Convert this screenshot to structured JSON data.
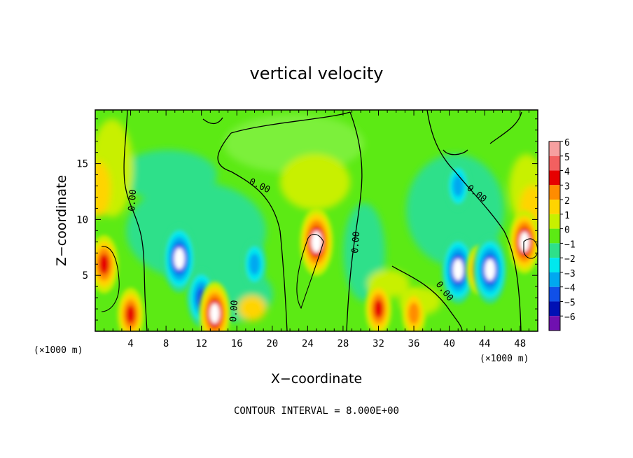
{
  "chart_data": {
    "type": "heatmap",
    "title": "vertical velocity",
    "xlabel": "X−coordinate",
    "ylabel": "Z−coordinate",
    "x_unit": "(×1000 m)",
    "x_unit_right": "(×1000 m)",
    "xlim": [
      0,
      50
    ],
    "ylim": [
      0,
      19.8
    ],
    "x_ticks": [
      4,
      8,
      12,
      16,
      20,
      24,
      28,
      32,
      36,
      40,
      44,
      48
    ],
    "y_ticks": [
      5,
      10,
      15
    ],
    "colorbar": {
      "levels": [
        6,
        5,
        4,
        3,
        2,
        1,
        0,
        -1,
        -2,
        -3,
        -4,
        -5,
        -6
      ],
      "level_labels": [
        "6",
        "5",
        "4",
        "3",
        "2",
        "1",
        "0",
        "−1",
        "−2",
        "−3",
        "−4",
        "−5",
        "−6"
      ],
      "colors": [
        "#f6a0a0",
        "#f26060",
        "#e60000",
        "#ff8c00",
        "#ffd400",
        "#c8f000",
        "#5cea14",
        "#2ee08a",
        "#00e8ee",
        "#00a8f0",
        "#1050e8",
        "#0010b4",
        "#7010b0"
      ]
    },
    "cells": [
      {
        "x": 1,
        "z": 6,
        "w": 4.5
      },
      {
        "x": 4,
        "z": 1.5,
        "w": 4.0
      },
      {
        "x": 9.5,
        "z": 6.5,
        "w": -5.5
      },
      {
        "x": 12,
        "z": 3.0,
        "w": -4.5
      },
      {
        "x": 13.5,
        "z": 1.6,
        "w": 5.0
      },
      {
        "x": 18,
        "z": 6,
        "w": -3.5
      },
      {
        "x": 25,
        "z": 8,
        "w": 5.5
      },
      {
        "x": 32,
        "z": 2.0,
        "w": 4.0
      },
      {
        "x": 36,
        "z": 1.6,
        "w": 3.5
      },
      {
        "x": 41,
        "z": 5.5,
        "w": -5.5
      },
      {
        "x": 41,
        "z": 13,
        "w": -3.5
      },
      {
        "x": 43.3,
        "z": 5.5,
        "w": 3.5
      },
      {
        "x": 44.6,
        "z": 5.5,
        "w": -5.5
      },
      {
        "x": 48.5,
        "z": 8,
        "w": 5.0
      }
    ],
    "contour_labels": [
      "0.00",
      "0.00",
      "0.00",
      "0.00",
      "0.00",
      "0.00"
    ]
  },
  "footer": "CONTOUR INTERVAL = 8.000E+00"
}
